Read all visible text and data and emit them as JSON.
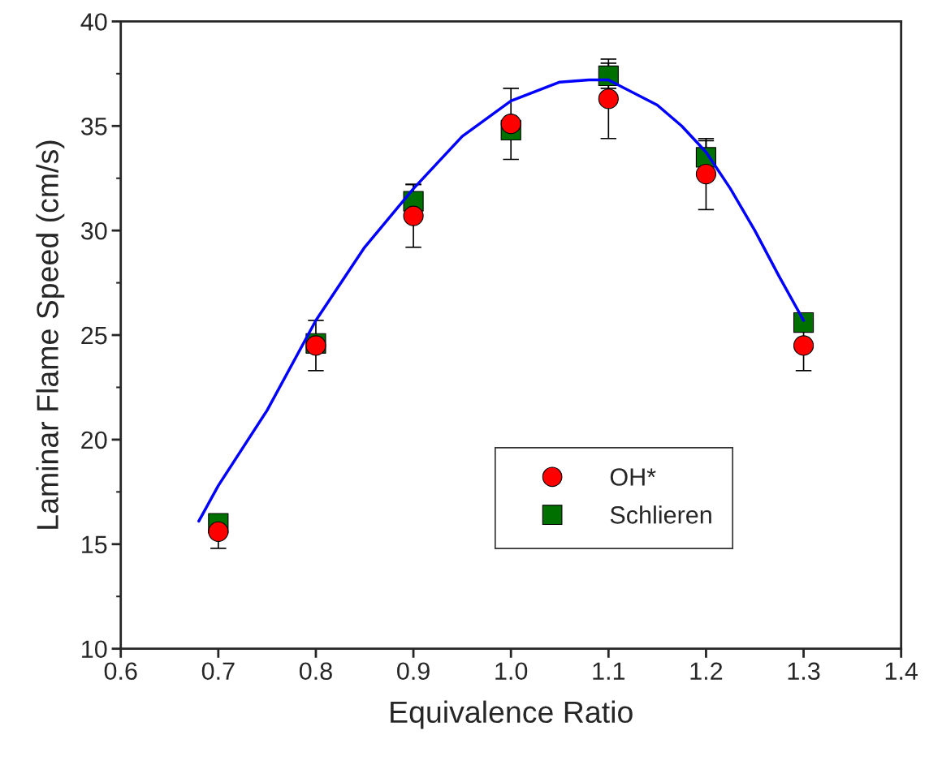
{
  "chart_data": {
    "type": "scatter",
    "xlabel": "Equivalence Ratio",
    "ylabel": "Laminar Flame Speed (cm/s)",
    "x": [
      0.7,
      0.8,
      0.9,
      1.0,
      1.1,
      1.2,
      1.3
    ],
    "series": [
      {
        "name": "OH*",
        "marker": "circle",
        "color": "#ff0000",
        "values": [
          15.6,
          24.5,
          30.7,
          35.1,
          36.3,
          32.7,
          24.5
        ],
        "errors": [
          0.8,
          1.2,
          1.5,
          1.7,
          1.9,
          1.7,
          1.2
        ]
      },
      {
        "name": "Schlieren",
        "marker": "square",
        "color": "#007000",
        "values": [
          16.0,
          24.6,
          31.4,
          34.8,
          37.4,
          33.5,
          25.6
        ],
        "errors": [
          null,
          null,
          0.8,
          null,
          0.6,
          0.8,
          null
        ]
      },
      {
        "type": "line",
        "color": "#0000ff",
        "marker": "none",
        "line_style": "solid",
        "x": [
          0.68,
          0.7,
          0.75,
          0.8,
          0.85,
          0.9,
          0.95,
          1.0,
          1.05,
          1.08,
          1.1,
          1.15,
          1.175,
          1.2,
          1.225,
          1.25,
          1.275,
          1.3
        ],
        "values": [
          16.1,
          17.8,
          21.4,
          25.7,
          29.2,
          32.0,
          34.5,
          36.2,
          37.1,
          37.2,
          37.2,
          36.0,
          35.0,
          33.75,
          32.0,
          30.0,
          27.8,
          25.7
        ]
      }
    ],
    "xlim": [
      0.6,
      1.4
    ],
    "xticks": [
      {
        "value": 0.6,
        "label": "0.6"
      },
      {
        "value": 0.7,
        "label": "0.7"
      },
      {
        "value": 0.8,
        "label": "0.8"
      },
      {
        "value": 0.9,
        "label": "0.9"
      },
      {
        "value": 1.0,
        "label": "1.0"
      },
      {
        "value": 1.1,
        "label": "1.1"
      },
      {
        "value": 1.2,
        "label": "1.2"
      },
      {
        "value": 1.3,
        "label": "1.3"
      },
      {
        "value": 1.4,
        "label": "1.4"
      }
    ],
    "ylim": [
      10,
      40
    ],
    "yticks": [
      10,
      15,
      20,
      25,
      30,
      35,
      40
    ],
    "grid": false,
    "legend": "bottom right"
  }
}
